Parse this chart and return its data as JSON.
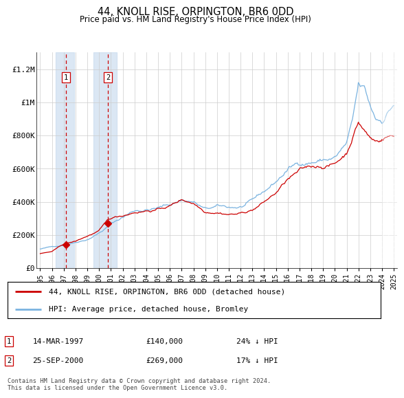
{
  "title": "44, KNOLL RISE, ORPINGTON, BR6 0DD",
  "subtitle": "Price paid vs. HM Land Registry's House Price Index (HPI)",
  "hpi_color": "#7ab3e0",
  "price_color": "#cc0000",
  "plot_bg": "#ffffff",
  "ylim": [
    0,
    1300000
  ],
  "yticks": [
    0,
    200000,
    400000,
    600000,
    800000,
    1000000,
    1200000
  ],
  "ytick_labels": [
    "£0",
    "£200K",
    "£400K",
    "£600K",
    "£800K",
    "£1M",
    "£1.2M"
  ],
  "legend_label_price": "44, KNOLL RISE, ORPINGTON, BR6 0DD (detached house)",
  "legend_label_hpi": "HPI: Average price, detached house, Bromley",
  "annotation1_date": "14-MAR-1997",
  "annotation1_price": "£140,000",
  "annotation1_pct": "24% ↓ HPI",
  "annotation1_year": 1997.2,
  "annotation1_value": 140000,
  "annotation2_date": "25-SEP-2000",
  "annotation2_price": "£269,000",
  "annotation2_pct": "17% ↓ HPI",
  "annotation2_year": 2000.75,
  "annotation2_value": 269000,
  "footer": "Contains HM Land Registry data © Crown copyright and database right 2024.\nThis data is licensed under the Open Government Licence v3.0.",
  "xstart": 1995,
  "xend": 2025
}
